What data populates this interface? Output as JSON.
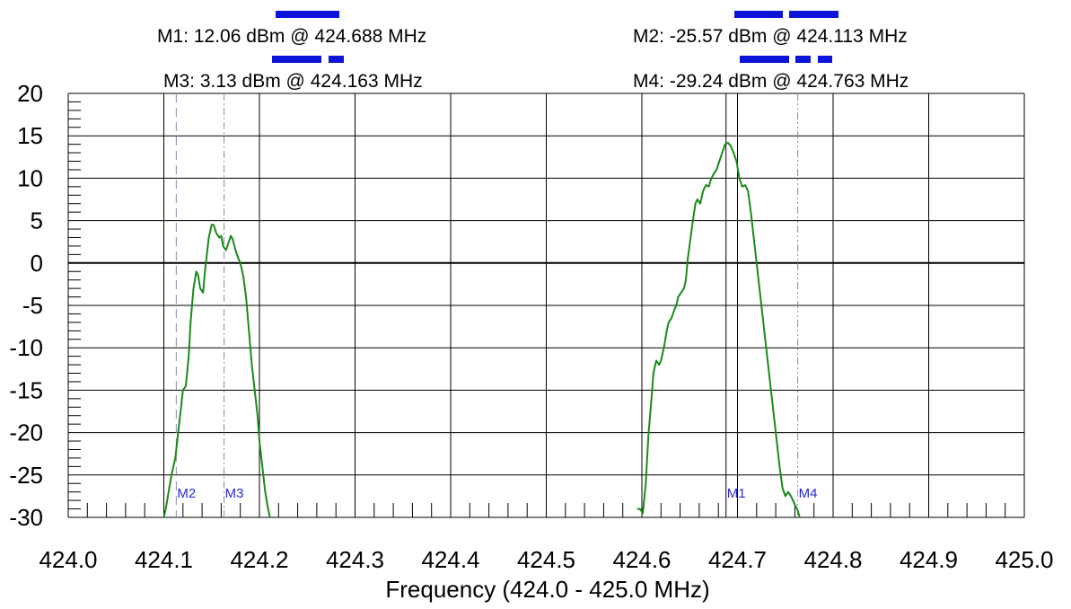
{
  "markers": {
    "m1": {
      "text": "M1: 12.06 dBm @ 424.688 MHz",
      "freq": 424.688,
      "value_dbm": 12.06,
      "tag": "M1",
      "line_style": "solid"
    },
    "m2": {
      "text": "M2: -25.57 dBm @ 424.113 MHz",
      "freq": 424.113,
      "value_dbm": -25.57,
      "tag": "M2",
      "line_style": "long-dash"
    },
    "m3": {
      "text": "M3: 3.13 dBm @ 424.163 MHz",
      "freq": 424.163,
      "value_dbm": 3.13,
      "tag": "M3",
      "line_style": "dash-dot"
    },
    "m4": {
      "text": "M4: -29.24 dBm @ 424.763 MHz",
      "freq": 424.763,
      "value_dbm": -29.24,
      "tag": "M4",
      "line_style": "dash-dot-dot"
    }
  },
  "colors": {
    "trace": "#1a8a1a",
    "marker_tag": "#2a2ad8",
    "legend_line": "#0b14d8",
    "grid": "#000000",
    "background": "#ffffff"
  },
  "chart_data": {
    "type": "line",
    "title": "",
    "xlabel": "Frequency (424.0 - 425.0 MHz)",
    "ylabel": "",
    "xlim": [
      424.0,
      425.0
    ],
    "ylim": [
      -30,
      20
    ],
    "xticks": [
      "424.0",
      "424.1",
      "424.2",
      "424.3",
      "424.4",
      "424.5",
      "424.6",
      "424.7",
      "424.8",
      "424.9",
      "425.0"
    ],
    "yticks": [
      "20",
      "15",
      "10",
      "5",
      "0",
      "-5",
      "-10",
      "-15",
      "-20",
      "-25",
      "-30"
    ],
    "grid": true,
    "series": [
      {
        "x": [
          424.1,
          424.102,
          424.105,
          424.108,
          424.112,
          424.115,
          424.118,
          424.12,
          424.123,
          424.126,
          424.128,
          424.131,
          424.134,
          424.136,
          424.138,
          424.141,
          424.143,
          424.145,
          424.147,
          424.15,
          424.152,
          424.155,
          424.158,
          424.16,
          424.162,
          424.165,
          424.168,
          424.17,
          424.172,
          424.175,
          424.178,
          424.18,
          424.183,
          424.186,
          424.189,
          424.192,
          424.195,
          424.198,
          424.2,
          424.203,
          424.206,
          424.209,
          424.211
        ],
        "y": [
          -30.0,
          -29.0,
          -27.0,
          -25.0,
          -23.0,
          -20.0,
          -17.0,
          -15.0,
          -14.5,
          -11.0,
          -7.0,
          -3.0,
          -1.0,
          -1.5,
          -3.0,
          -3.5,
          -1.0,
          1.0,
          3.0,
          4.5,
          4.5,
          3.5,
          3.0,
          3.2,
          2.0,
          1.5,
          2.5,
          3.2,
          2.8,
          1.5,
          0.5,
          0.0,
          -1.5,
          -4.0,
          -8.0,
          -12.0,
          -15.0,
          -18.0,
          -21.0,
          -24.0,
          -27.0,
          -29.0,
          -30.0
        ]
      },
      {
        "x": [
          424.595,
          424.598,
          424.601,
          424.604,
          424.607,
          424.61,
          424.612,
          424.615,
          424.618,
          424.62,
          424.623,
          424.626,
          424.628,
          424.631,
          424.634,
          424.636,
          424.638,
          424.641,
          424.644,
          424.646,
          424.648,
          424.651,
          424.654,
          424.656,
          424.658,
          424.661,
          424.664,
          424.667,
          424.67,
          424.672,
          424.675,
          424.678,
          424.681,
          424.684,
          424.687,
          424.69,
          424.693,
          424.696,
          424.699,
          424.702,
          424.705,
          424.708,
          424.711,
          424.714,
          424.717,
          424.72,
          424.723,
          424.726,
          424.729,
          424.732,
          424.735,
          424.738,
          424.741,
          424.744,
          424.747,
          424.75,
          424.753,
          424.756,
          424.76,
          424.763,
          424.765
        ],
        "y": [
          -29.0,
          -29.0,
          -29.5,
          -26.0,
          -20.0,
          -16.0,
          -13.0,
          -11.5,
          -12.0,
          -11.5,
          -10.0,
          -8.0,
          -7.0,
          -6.5,
          -5.5,
          -5.0,
          -4.0,
          -3.5,
          -3.0,
          -2.0,
          0.5,
          3.0,
          5.5,
          7.0,
          7.5,
          7.0,
          8.5,
          9.2,
          9.0,
          9.8,
          10.5,
          11.0,
          12.0,
          13.0,
          14.0,
          14.2,
          13.8,
          13.0,
          12.0,
          10.0,
          9.0,
          9.2,
          8.5,
          6.0,
          3.0,
          0.0,
          -3.0,
          -6.0,
          -9.0,
          -12.0,
          -15.0,
          -18.0,
          -21.0,
          -24.0,
          -26.5,
          -27.5,
          -27.0,
          -27.5,
          -28.5,
          -29.2,
          -30.0
        ]
      }
    ]
  }
}
